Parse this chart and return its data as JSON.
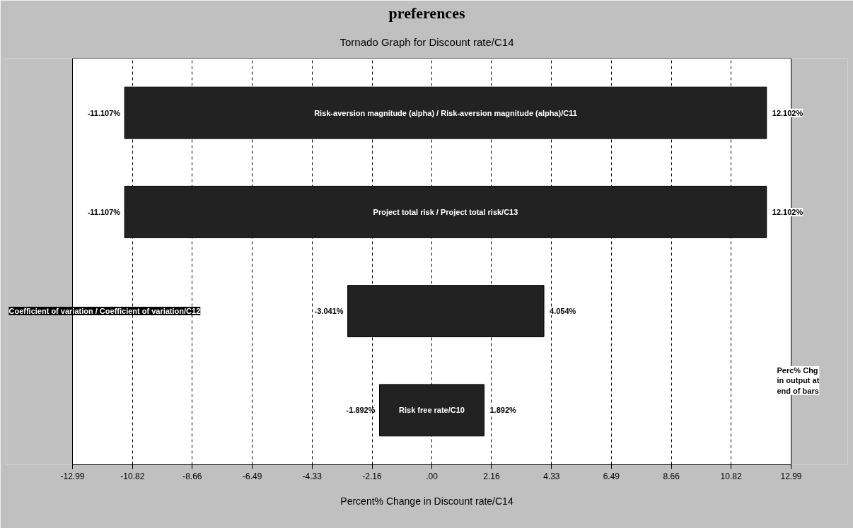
{
  "chart_data": {
    "type": "bar",
    "orientation": "horizontal",
    "title": "Tornado Graph for Discount rate/C14",
    "xlabel": "Percent% Change in Discount rate/C14",
    "categories": [
      "Risk-aversion magnitude (alpha) / Risk-aversion magnitude (alpha)/C11",
      "Project total risk / Project total risk/C13",
      "Coefficient of variation / Coefficient of variation/C12",
      "Risk free rate/C10"
    ],
    "base": [
      -11.107,
      -11.107,
      -3.041,
      -1.892
    ],
    "values": [
      23.209,
      23.209,
      7.095,
      3.784
    ],
    "color": "#222222",
    "xlim": [
      -12.99,
      12.99
    ],
    "xticks": [
      -12.99,
      -10.82,
      -8.66,
      -6.49,
      -4.33,
      -2.16,
      {
        "value": 0,
        "label": ".00"
      },
      2.16,
      4.33,
      6.49,
      8.66,
      10.82,
      12.99
    ],
    "grid": "x",
    "annotations": [
      "preferences",
      "Perc% Chg\nin output at\nend of bars",
      {
        "text": "-11.107%",
        "x": -11.107,
        "y": "Risk-aversion magnitude (alpha) / Risk-aversion magnitude (alpha)/C11"
      },
      {
        "text": "12.102%",
        "x": 12.102,
        "y": "Risk-aversion magnitude (alpha) / Risk-aversion magnitude (alpha)/C11"
      },
      {
        "text": "-11.107%",
        "x": -11.107,
        "y": "Project total risk / Project total risk/C13"
      },
      {
        "text": "12.102%",
        "x": 12.102,
        "y": "Project total risk / Project total risk/C13"
      },
      {
        "text": "-3.041%",
        "x": -3.041,
        "y": "Coefficient of variation / Coefficient of variation/C12"
      },
      {
        "text": "4.054%",
        "x": 4.054,
        "y": "Coefficient of variation / Coefficient of variation/C12"
      },
      {
        "text": "-1.892%",
        "x": -1.892,
        "y": "Risk free rate/C10"
      },
      {
        "text": "1.892%",
        "x": 1.892,
        "y": "Risk free rate/C10"
      }
    ]
  }
}
